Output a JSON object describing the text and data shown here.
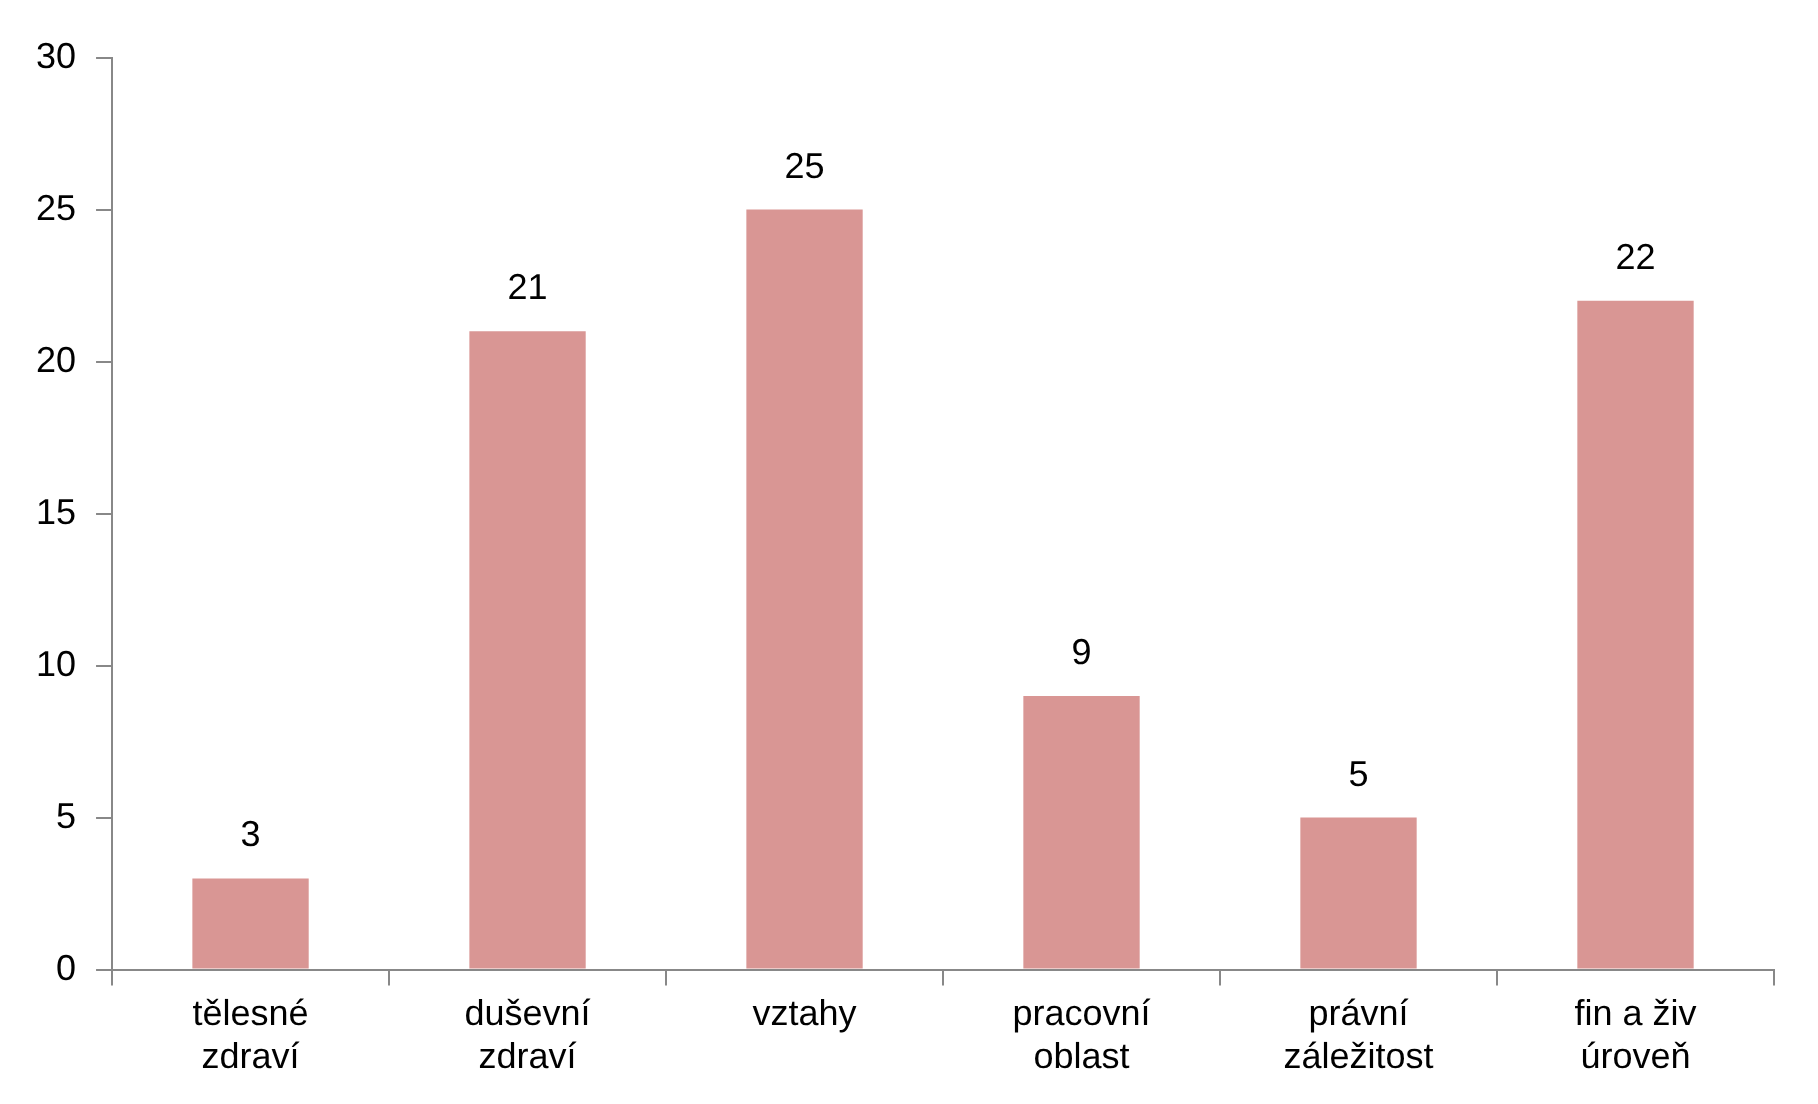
{
  "chart_data": {
    "type": "bar",
    "categories": [
      "tělesné zdraví",
      "duševní zdraví",
      "vztahy",
      "pracovní oblast",
      "právní záležitost",
      "fin a živ úroveň"
    ],
    "values": [
      3,
      21,
      25,
      9,
      5,
      22
    ],
    "color": "#d99694",
    "ylim": [
      0,
      30
    ],
    "yticks": [
      0,
      5,
      10,
      15,
      20,
      25,
      30
    ],
    "grid": false,
    "legend": false,
    "data_labels": true
  }
}
